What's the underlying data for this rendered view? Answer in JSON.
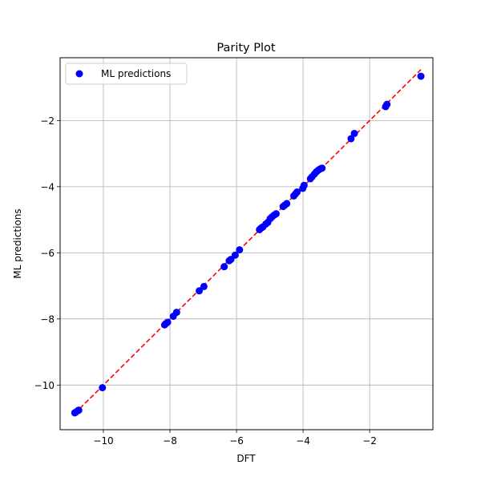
{
  "chart_data": {
    "type": "scatter",
    "title": "Parity Plot",
    "xlabel": "DFT",
    "ylabel": "ML predictions",
    "xlim": [
      -11.3,
      -0.1
    ],
    "ylim": [
      -11.35,
      -0.1
    ],
    "xticks": [
      -10,
      -8,
      -6,
      -4,
      -2
    ],
    "yticks": [
      -10,
      -8,
      -6,
      -4,
      -2
    ],
    "tick_labels": [
      "−10",
      "−8",
      "−6",
      "−4",
      "−2"
    ],
    "grid": true,
    "legend": {
      "position": "top-left",
      "entries": [
        "ML predictions"
      ]
    },
    "series": [
      {
        "name": "ML predictions",
        "color": "#0000ff",
        "points": [
          [
            -10.86,
            -10.84
          ],
          [
            -10.83,
            -10.82
          ],
          [
            -10.76,
            -10.77
          ],
          [
            -10.74,
            -10.76
          ],
          [
            -10.03,
            -10.08
          ],
          [
            -8.16,
            -8.18
          ],
          [
            -8.12,
            -8.14
          ],
          [
            -8.07,
            -8.1
          ],
          [
            -7.9,
            -7.92
          ],
          [
            -7.8,
            -7.8
          ],
          [
            -7.12,
            -7.15
          ],
          [
            -6.98,
            -7.02
          ],
          [
            -6.37,
            -6.42
          ],
          [
            -6.22,
            -6.24
          ],
          [
            -6.17,
            -6.2
          ],
          [
            -6.04,
            -6.07
          ],
          [
            -5.91,
            -5.91
          ],
          [
            -5.31,
            -5.3
          ],
          [
            -5.26,
            -5.25
          ],
          [
            -5.21,
            -5.22
          ],
          [
            -5.12,
            -5.13
          ],
          [
            -5.06,
            -5.08
          ],
          [
            -4.99,
            -4.97
          ],
          [
            -4.94,
            -4.92
          ],
          [
            -4.87,
            -4.86
          ],
          [
            -4.81,
            -4.82
          ],
          [
            -4.6,
            -4.6
          ],
          [
            -4.55,
            -4.56
          ],
          [
            -4.49,
            -4.51
          ],
          [
            -4.28,
            -4.28
          ],
          [
            -4.23,
            -4.22
          ],
          [
            -4.18,
            -4.16
          ],
          [
            -4.01,
            -4.05
          ],
          [
            -3.97,
            -3.96
          ],
          [
            -3.78,
            -3.76
          ],
          [
            -3.73,
            -3.7
          ],
          [
            -3.66,
            -3.62
          ],
          [
            -3.6,
            -3.55
          ],
          [
            -3.54,
            -3.5
          ],
          [
            -3.48,
            -3.46
          ],
          [
            -3.43,
            -3.44
          ],
          [
            -2.56,
            -2.55
          ],
          [
            -2.46,
            -2.39
          ],
          [
            -1.52,
            -1.58
          ],
          [
            -1.48,
            -1.51
          ],
          [
            -0.46,
            -0.66
          ]
        ]
      },
      {
        "name": "",
        "kind": "line",
        "color": "#ff0000",
        "dash": true,
        "points": [
          [
            -10.86,
            -10.86
          ],
          [
            -0.46,
            -0.46
          ]
        ]
      }
    ]
  }
}
